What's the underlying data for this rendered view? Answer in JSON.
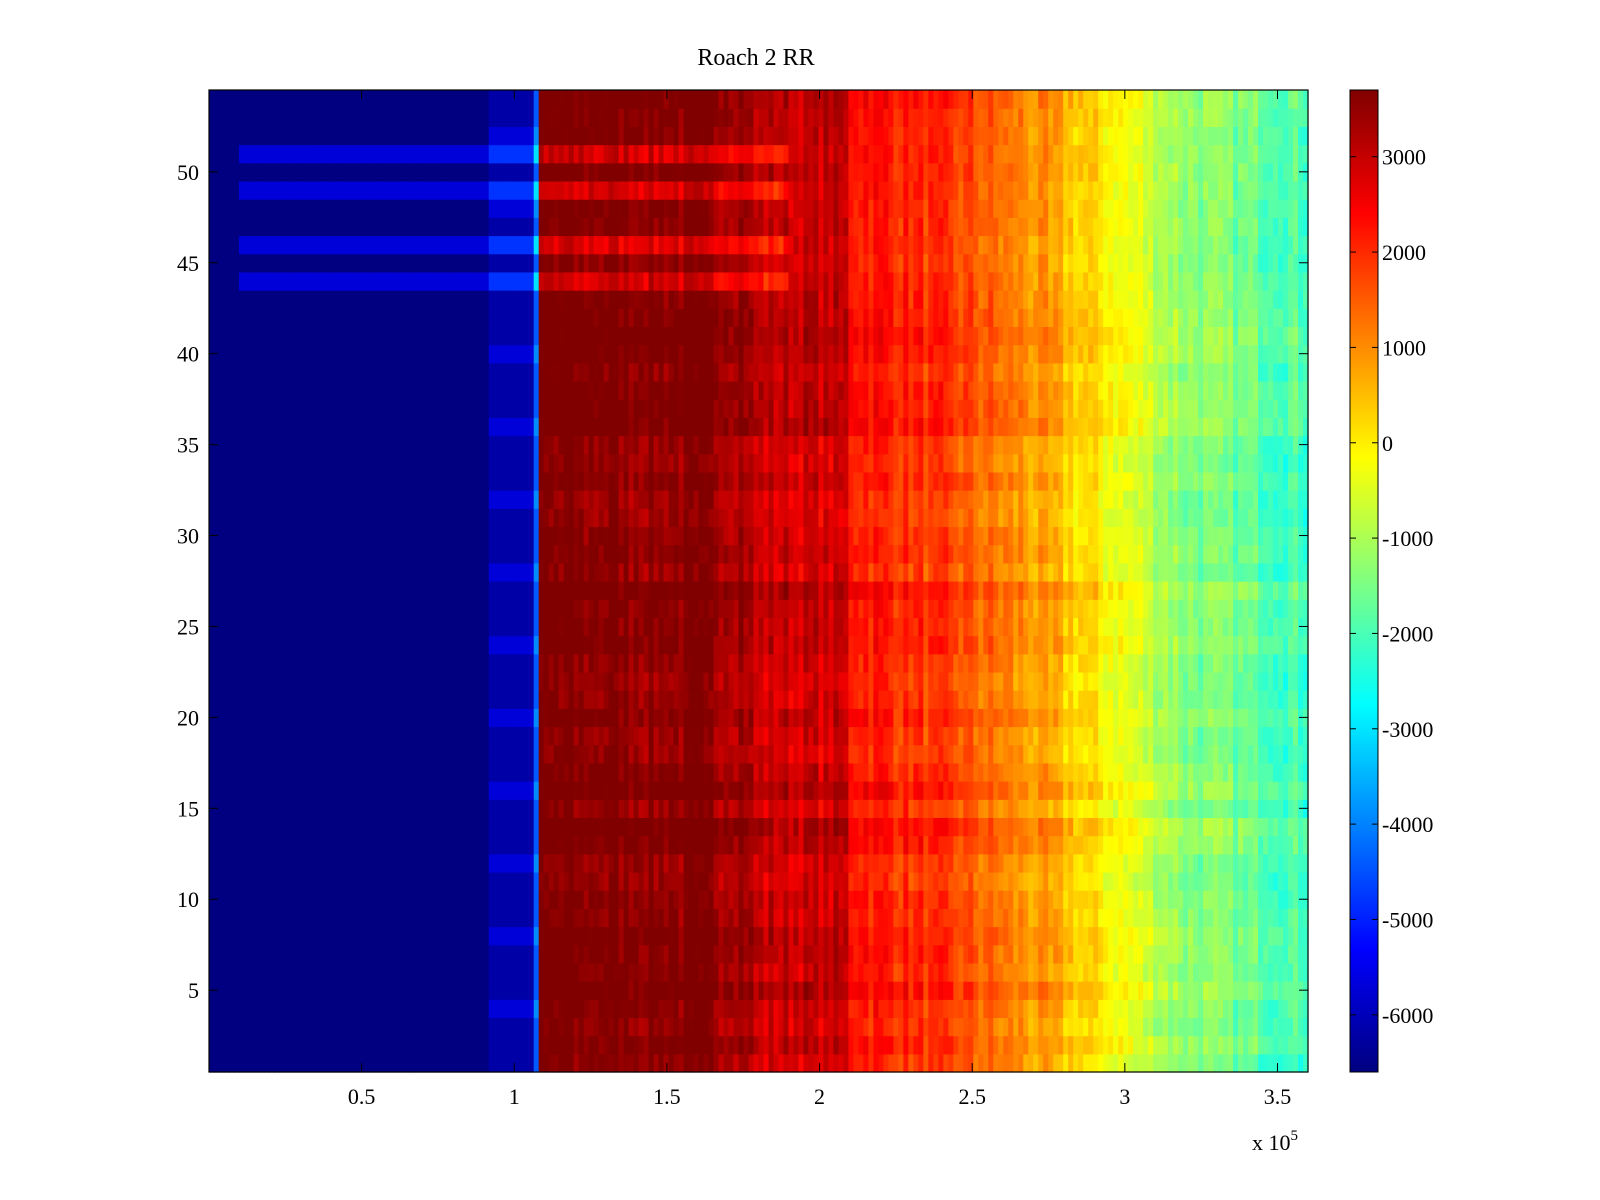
{
  "chart_data": {
    "type": "heatmap",
    "title": "Roach 2 RR",
    "xlabel": "",
    "ylabel": "",
    "x_multiplier_label": "x 10",
    "x_multiplier_exponent": "5",
    "xlim": [
      0,
      3.6
    ],
    "ylim": [
      0.5,
      54.5
    ],
    "x_ticks": [
      0.5,
      1,
      1.5,
      2,
      2.5,
      3,
      3.5
    ],
    "x_tick_labels": [
      "0.5",
      "1",
      "1.5",
      "2",
      "2.5",
      "3",
      "3.5"
    ],
    "y_ticks": [
      5,
      10,
      15,
      20,
      25,
      30,
      35,
      40,
      45,
      50
    ],
    "y_tick_labels": [
      "5",
      "10",
      "15",
      "20",
      "25",
      "30",
      "35",
      "40",
      "45",
      "50"
    ],
    "rows": 54,
    "colormap": "jet",
    "colorbar": {
      "min": -6600,
      "max": 3700,
      "ticks": [
        -6000,
        -5000,
        -4000,
        -3000,
        -2000,
        -1000,
        0,
        1000,
        2000,
        3000
      ],
      "tick_labels": [
        "-6000",
        "-5000",
        "-4000",
        "-3000",
        "-2000",
        "-1000",
        "0",
        "1000",
        "2000",
        "3000"
      ]
    },
    "column_profile": [
      {
        "x": 0,
        "value": -6600
      },
      {
        "x": 0.91,
        "value": -6600
      },
      {
        "x": 0.92,
        "value": -6200
      },
      {
        "x": 1.07,
        "value": -6200
      },
      {
        "x": 1.08,
        "value": 3700
      },
      {
        "x": 1.4,
        "value": 3700
      },
      {
        "x": 1.77,
        "value": 3500
      },
      {
        "x": 1.78,
        "value": 3000
      },
      {
        "x": 2.09,
        "value": 2900
      },
      {
        "x": 2.1,
        "value": 2400
      },
      {
        "x": 2.45,
        "value": 1700
      },
      {
        "x": 2.75,
        "value": 700
      },
      {
        "x": 3.0,
        "value": -300
      },
      {
        "x": 3.2,
        "value": -1300
      },
      {
        "x": 3.6,
        "value": -2000
      }
    ],
    "highlighted_rows": [
      44,
      46,
      49,
      51
    ],
    "grid": false
  }
}
